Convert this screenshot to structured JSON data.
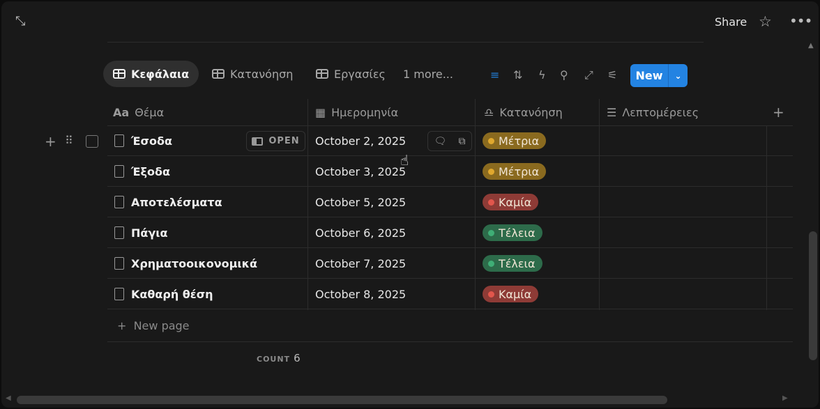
{
  "topbar": {
    "share_label": "Share",
    "expand_icon": "expand-icon",
    "star_icon": "star-icon",
    "more_icon": "more-icon"
  },
  "views": {
    "tabs": [
      {
        "label": "Κεφάλαια",
        "active": true
      },
      {
        "label": "Κατανόηση"
      },
      {
        "label": "Εργασίες"
      }
    ],
    "more_label": "1 more..."
  },
  "toolbar": {
    "new_label": "New",
    "filter_color": "#2383e2"
  },
  "columns": {
    "title": "Θέμα",
    "title_icon": "Aa",
    "date": "Ημερομηνία",
    "understanding": "Κατανόηση",
    "details": "Λεπτομέρειες"
  },
  "rows": [
    {
      "title": "Έσοδα",
      "date": "October 2, 2025",
      "status": "Μέτρια",
      "status_color": "#8a6a1f",
      "dot_color": "#e0a82e"
    },
    {
      "title": "Έξοδα",
      "date": "October 3, 2025",
      "status": "Μέτρια",
      "status_color": "#8a6a1f",
      "dot_color": "#e0a82e"
    },
    {
      "title": "Αποτελέσματα",
      "date": "October 5, 2025",
      "status": "Καμία",
      "status_color": "#8e3b36",
      "dot_color": "#e2564c"
    },
    {
      "title": "Πάγια",
      "date": "October 6, 2025",
      "status": "Τέλεια",
      "status_color": "#2d6b4a",
      "dot_color": "#3fae76"
    },
    {
      "title": "Χρηματοοικονομικά",
      "date": "October 7, 2025",
      "status": "Τέλεια",
      "status_color": "#2d6b4a",
      "dot_color": "#3fae76"
    },
    {
      "title": "Καθαρή θέση",
      "date": "October 8, 2025",
      "status": "Καμία",
      "status_color": "#8e3b36",
      "dot_color": "#e2564c"
    }
  ],
  "row_hover": {
    "open_label": "OPEN"
  },
  "new_page_label": "New page",
  "footer": {
    "count_label": "COUNT",
    "count_value": "6"
  }
}
